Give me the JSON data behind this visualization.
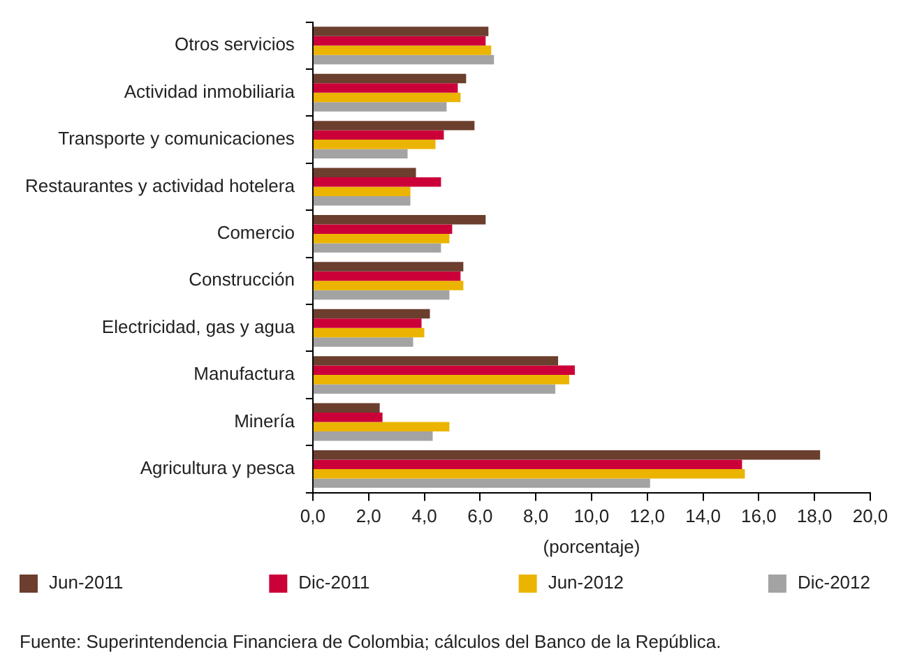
{
  "chart_data": {
    "type": "bar",
    "orientation": "horizontal",
    "categories": [
      "Otros servicios",
      "Actividad inmobiliaria",
      "Transporte y comunicaciones",
      "Restaurantes y actividad hotelera",
      "Comercio",
      "Construcción",
      "Electricidad, gas y agua",
      "Manufactura",
      "Minería",
      "Agricultura y pesca"
    ],
    "series": [
      {
        "name": "Jun-2011",
        "color": "#6b3e2e",
        "values": [
          6.3,
          5.5,
          5.8,
          3.7,
          6.2,
          5.4,
          4.2,
          8.8,
          2.4,
          18.2
        ]
      },
      {
        "name": "Dic-2011",
        "color": "#cc0039",
        "values": [
          6.2,
          5.2,
          4.7,
          4.6,
          5.0,
          5.3,
          3.9,
          9.4,
          2.5,
          15.4
        ]
      },
      {
        "name": "Jun-2012",
        "color": "#ebb400",
        "values": [
          6.4,
          5.3,
          4.4,
          3.5,
          4.9,
          5.4,
          4.0,
          9.2,
          4.9,
          15.5
        ]
      },
      {
        "name": "Dic-2012",
        "color": "#a3a3a3",
        "values": [
          6.5,
          4.8,
          3.4,
          3.5,
          4.6,
          4.9,
          3.6,
          8.7,
          4.3,
          12.1
        ]
      }
    ],
    "xlim": [
      0,
      20
    ],
    "xticks": [
      {
        "value": 0,
        "label": "0,0"
      },
      {
        "value": 2,
        "label": "2,0"
      },
      {
        "value": 4,
        "label": "4,0"
      },
      {
        "value": 6,
        "label": "6,0"
      },
      {
        "value": 8,
        "label": "8,0"
      },
      {
        "value": 10,
        "label": "10,0"
      },
      {
        "value": 12,
        "label": "12,0"
      },
      {
        "value": 14,
        "label": "14,0"
      },
      {
        "value": 16,
        "label": "16,0"
      },
      {
        "value": 18,
        "label": "18,0"
      },
      {
        "value": 20,
        "label": "20,0"
      }
    ],
    "xlabel": "(porcentaje)",
    "legend": "bottom",
    "annotations": [
      "Fuente: Superintendencia Financiera de Colombia; cálculos del Banco de la República."
    ]
  }
}
